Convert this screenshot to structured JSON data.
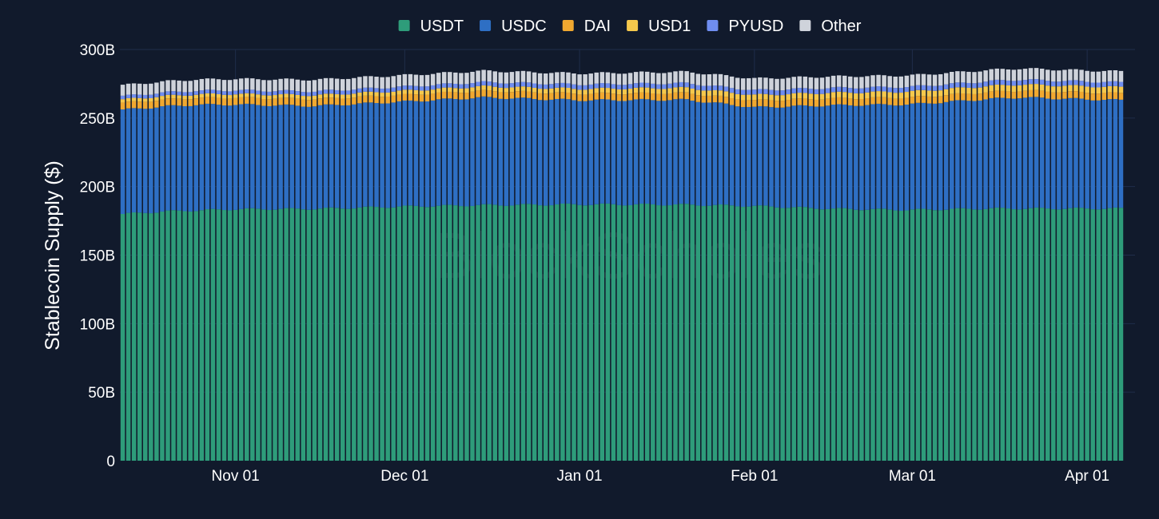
{
  "watermark": "BlockScholes",
  "chart_data": {
    "type": "bar",
    "stacked": true,
    "title": "",
    "xlabel": "",
    "ylabel": "Stablecoin Supply ($)",
    "ylim": [
      0,
      300
    ],
    "y_unit": "B",
    "y_ticks": [
      {
        "value": 0,
        "label": "0"
      },
      {
        "value": 50,
        "label": "50B"
      },
      {
        "value": 100,
        "label": "100B"
      },
      {
        "value": 150,
        "label": "150B"
      },
      {
        "value": 200,
        "label": "200B"
      },
      {
        "value": 250,
        "label": "250B"
      },
      {
        "value": 300,
        "label": "300B"
      }
    ],
    "x_start": "2024-10-12",
    "x_end": "2025-04-07",
    "x_ticks": [
      {
        "date": "2024-11-01",
        "label": "Nov 01"
      },
      {
        "date": "2024-12-01",
        "label": "Dec 01"
      },
      {
        "date": "2025-01-01",
        "label": "Jan 01"
      },
      {
        "date": "2025-02-01",
        "label": "Feb 01"
      },
      {
        "date": "2025-03-01",
        "label": "Mar 01"
      },
      {
        "date": "2025-04-01",
        "label": "Apr 01"
      }
    ],
    "grid": true,
    "legend_position": "top-center",
    "series": [
      {
        "name": "USDT",
        "color": "#2e9c7a",
        "keypoints": [
          [
            "2024-10-12",
            180
          ],
          [
            "2024-10-20",
            182
          ],
          [
            "2024-11-01",
            183.5
          ],
          [
            "2024-11-15",
            183.8
          ],
          [
            "2024-12-01",
            185.5
          ],
          [
            "2024-12-15",
            186.5
          ],
          [
            "2025-01-01",
            187
          ],
          [
            "2025-01-20",
            186.8
          ],
          [
            "2025-02-01",
            185.8
          ],
          [
            "2025-02-15",
            183.8
          ],
          [
            "2025-02-28",
            183
          ],
          [
            "2025-03-15",
            184
          ],
          [
            "2025-04-07",
            184
          ]
        ]
      },
      {
        "name": "USDC",
        "color": "#2e6fc4",
        "keypoints": [
          [
            "2024-10-12",
            76
          ],
          [
            "2024-10-25",
            77
          ],
          [
            "2024-11-15",
            75
          ],
          [
            "2024-12-01",
            76.5
          ],
          [
            "2024-12-15",
            78.5
          ],
          [
            "2025-01-01",
            76
          ],
          [
            "2025-01-20",
            76.5
          ],
          [
            "2025-02-01",
            72
          ],
          [
            "2025-02-15",
            75.5
          ],
          [
            "2025-03-01",
            77
          ],
          [
            "2025-03-20",
            81
          ],
          [
            "2025-04-07",
            79
          ]
        ]
      },
      {
        "name": "DAI",
        "color": "#f0a830",
        "keypoints": [
          [
            "2024-10-12",
            5
          ],
          [
            "2024-11-15",
            5
          ],
          [
            "2025-01-01",
            4.8
          ],
          [
            "2025-02-01",
            5
          ],
          [
            "2025-04-07",
            5
          ]
        ]
      },
      {
        "name": "USD1",
        "color": "#f5c84c",
        "keypoints": [
          [
            "2024-10-12",
            2.5
          ],
          [
            "2024-12-01",
            3
          ],
          [
            "2025-02-01",
            4
          ],
          [
            "2025-03-15",
            4.5
          ],
          [
            "2025-04-07",
            4.5
          ]
        ]
      },
      {
        "name": "PYUSD",
        "color": "#6f8df0",
        "keypoints": [
          [
            "2024-10-12",
            2.5
          ],
          [
            "2024-12-01",
            3
          ],
          [
            "2025-02-01",
            3.5
          ],
          [
            "2025-04-07",
            3.5
          ]
        ]
      },
      {
        "name": "Other",
        "color": "#cfd3db",
        "keypoints": [
          [
            "2024-10-12",
            8
          ],
          [
            "2024-11-15",
            8.5
          ],
          [
            "2025-01-01",
            8
          ],
          [
            "2025-02-01",
            8.5
          ],
          [
            "2025-04-07",
            8
          ]
        ]
      }
    ]
  }
}
